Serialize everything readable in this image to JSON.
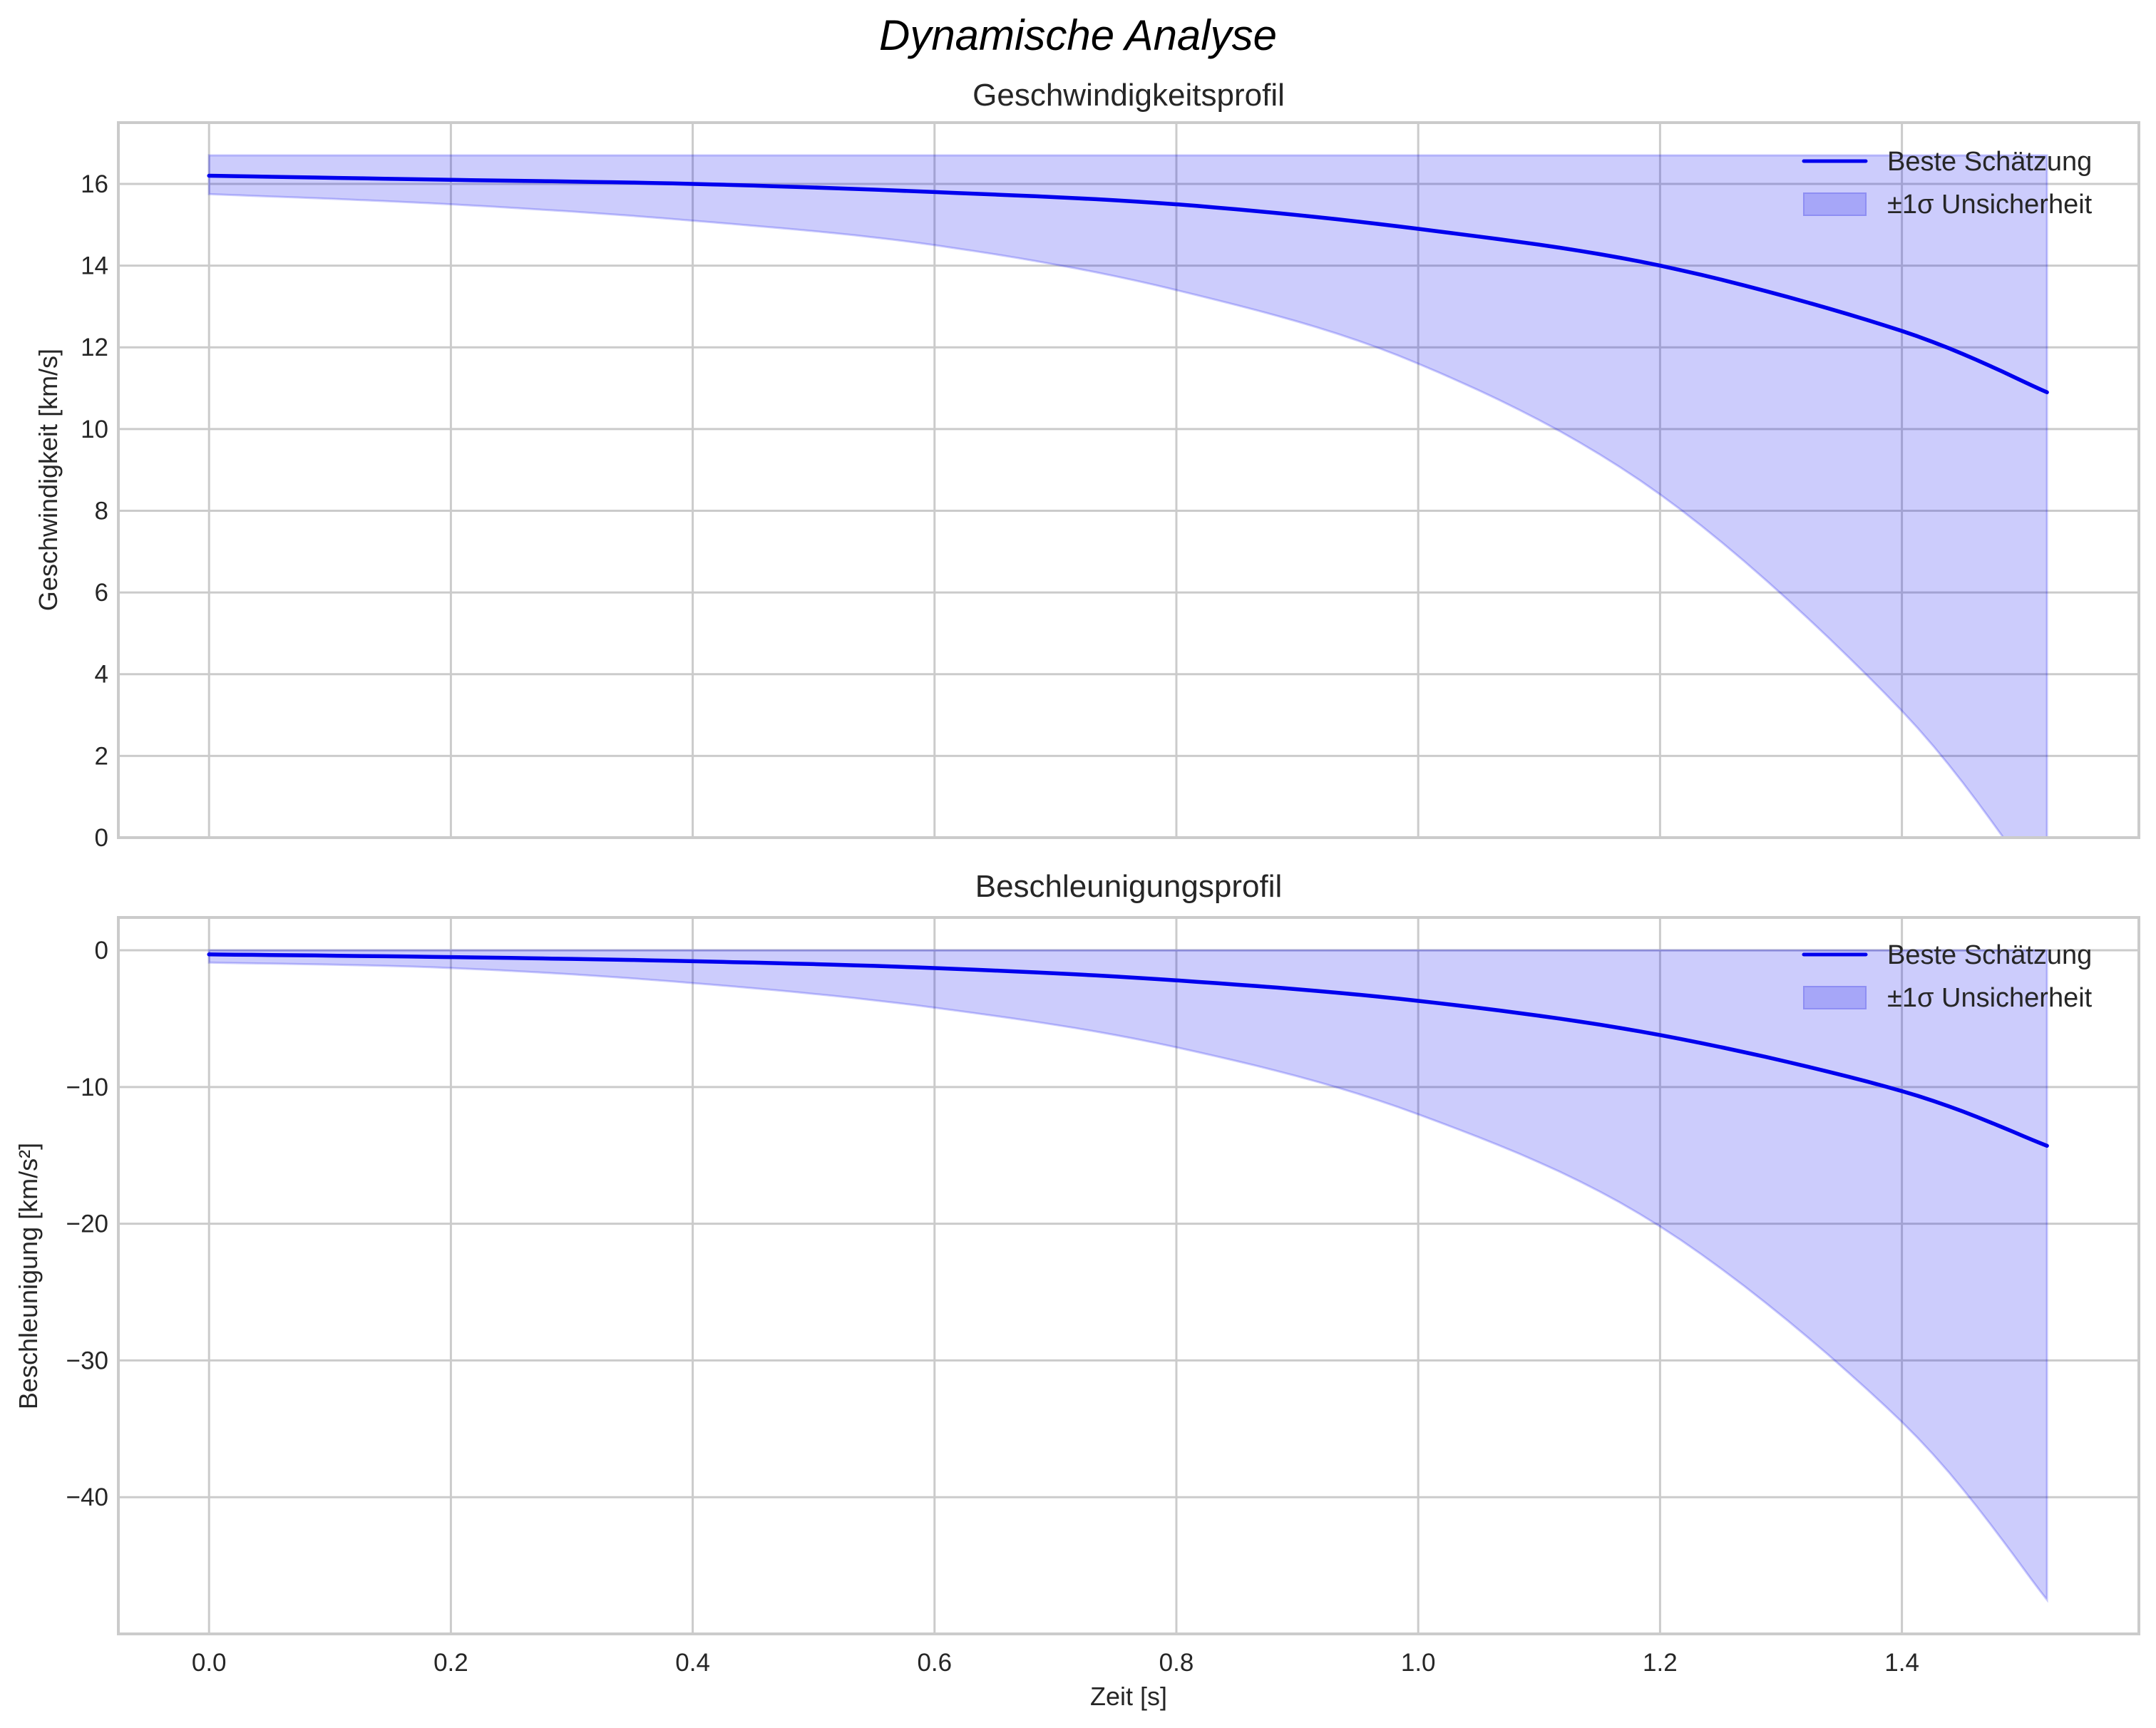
{
  "figure": {
    "suptitle": "Dynamische Analyse",
    "xlabel": "Zeit [s]"
  },
  "legend": {
    "line_label": "Beste Schätzung",
    "band_label": "±1σ Unsicherheit"
  },
  "colors": {
    "line": "#0000ee",
    "band_fill": "#ccccfb",
    "band_edge": "#9a9af5",
    "grid": "#cbcbcb",
    "text": "#262626"
  },
  "chart_data": [
    {
      "type": "line",
      "title": "Geschwindigkeitsprofil",
      "xlabel": "",
      "ylabel": "Geschwindigkeit [km/s]",
      "xlim": [
        -0.075,
        1.596
      ],
      "ylim": [
        0,
        17.5
      ],
      "xticks": [
        "0.0",
        "0.2",
        "0.4",
        "0.6",
        "0.8",
        "1.0",
        "1.2",
        "1.4"
      ],
      "yticks": [
        "0",
        "2",
        "4",
        "6",
        "8",
        "10",
        "12",
        "14",
        "16"
      ],
      "grid": true,
      "legend_position": "upper right",
      "x": [
        0.0,
        0.2,
        0.4,
        0.6,
        0.8,
        1.0,
        1.2,
        1.4,
        1.52
      ],
      "series": [
        {
          "name": "Beste Schätzung",
          "values": [
            16.2,
            16.1,
            16.0,
            15.8,
            15.5,
            14.9,
            14.0,
            12.4,
            10.9
          ]
        },
        {
          "name": "±1σ Unsicherheit (oben)",
          "values": [
            16.7,
            16.7,
            16.7,
            16.7,
            16.7,
            16.7,
            16.7,
            16.7,
            16.7
          ]
        },
        {
          "name": "±1σ Unsicherheit (unten)",
          "values": [
            15.75,
            15.5,
            15.1,
            14.5,
            13.4,
            11.6,
            8.4,
            3.1,
            -1.5
          ]
        }
      ]
    },
    {
      "type": "line",
      "title": "Beschleunigungsprofil",
      "xlabel": "Zeit [s]",
      "ylabel": "Beschleunigung [km/s²]",
      "xlim": [
        -0.075,
        1.596
      ],
      "ylim": [
        -50,
        2.4
      ],
      "xticks": [
        "0.0",
        "0.2",
        "0.4",
        "0.6",
        "0.8",
        "1.0",
        "1.2",
        "1.4"
      ],
      "yticks": [
        "0",
        "−10",
        "−20",
        "−30",
        "−40"
      ],
      "grid": true,
      "legend_position": "upper right",
      "x": [
        0.0,
        0.2,
        0.4,
        0.6,
        0.8,
        1.0,
        1.2,
        1.4,
        1.52
      ],
      "series": [
        {
          "name": "Beste Schätzung",
          "values": [
            -0.3,
            -0.5,
            -0.8,
            -1.3,
            -2.2,
            -3.7,
            -6.2,
            -10.3,
            -14.3
          ]
        },
        {
          "name": "±1σ Unsicherheit (oben)",
          "values": [
            0,
            0,
            0,
            0,
            0,
            0,
            0,
            0,
            0
          ]
        },
        {
          "name": "±1σ Unsicherheit (unten)",
          "values": [
            -0.9,
            -1.3,
            -2.4,
            -4.2,
            -7.1,
            -12.0,
            -20.2,
            -34.5,
            -47.5
          ]
        }
      ]
    }
  ]
}
